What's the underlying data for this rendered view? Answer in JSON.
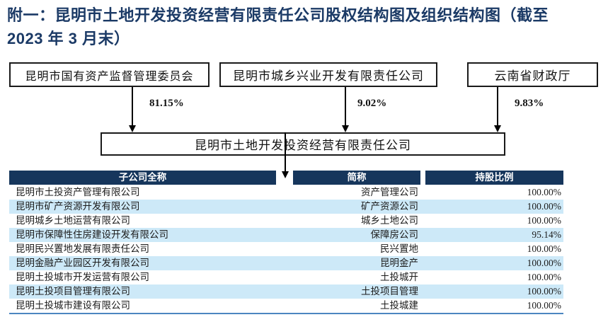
{
  "title": {
    "line1": "附一：昆明市土地开发投资经营有限责任公司股权结构图及组织结构图（截至",
    "line2": "2023 年 3 月末）"
  },
  "org_chart": {
    "shareholders": [
      {
        "name": "昆明市国有资产监督管理委员会",
        "stake": "81.15%"
      },
      {
        "name": "昆明市城乡兴业开发有限责任公司",
        "stake": "9.02%"
      },
      {
        "name": "云南省财政厅",
        "stake": "9.83%"
      }
    ],
    "company": "昆明市土地开发投资经营有限责任公司"
  },
  "subsidiary_table": {
    "headers": [
      "子公司全称",
      "简称",
      "持股比例"
    ],
    "rows": [
      {
        "full_name": "昆明市土投资产管理有限公司",
        "short_name": "资产管理公司",
        "ratio": "100.00%"
      },
      {
        "full_name": "昆明市矿产资源开发有限公司",
        "short_name": "矿产资源公司",
        "ratio": "100.00%"
      },
      {
        "full_name": "昆明城乡土地运营有限公司",
        "short_name": "城乡土地公司",
        "ratio": "100.00%"
      },
      {
        "full_name": "昆明市保障性住房建设开发有限公司",
        "short_name": "保障房公司",
        "ratio": "95.14%"
      },
      {
        "full_name": "昆明民兴置地发展有限责任公司",
        "short_name": "民兴置地",
        "ratio": "100.00%"
      },
      {
        "full_name": "昆明金融产业园区开发有限公司",
        "short_name": "昆明金产",
        "ratio": "100.00%"
      },
      {
        "full_name": "昆明土投城市开发运营有限公司",
        "short_name": "土投城开",
        "ratio": "100.00%"
      },
      {
        "full_name": "昆明土投项目管理有限公司",
        "short_name": "土投项目管理",
        "ratio": "100.00%"
      },
      {
        "full_name": "昆明土投城市建设有限公司",
        "short_name": "土投城建",
        "ratio": "100.00%"
      }
    ]
  },
  "colors": {
    "title_text": "#1B3A66",
    "table_header_bg": "#16365C",
    "row_alt_bg": "#CDE9F8",
    "table_bottom_border": "#4C86C0"
  }
}
